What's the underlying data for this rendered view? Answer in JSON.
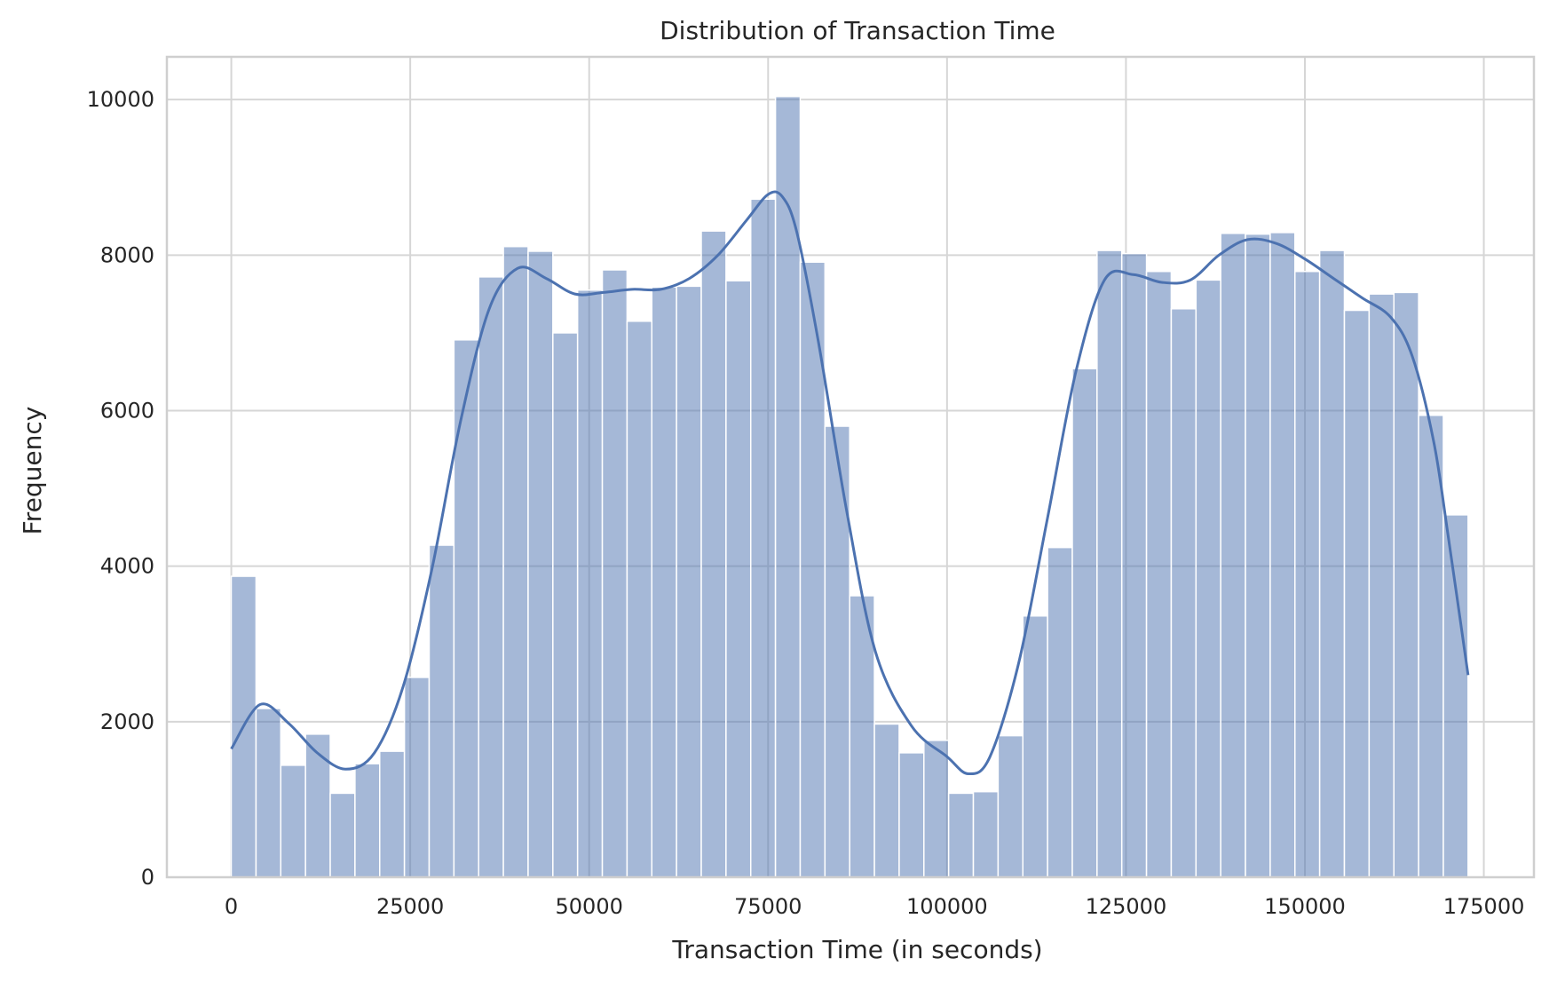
{
  "chart_data": {
    "type": "bar",
    "title": "Distribution of Transaction Time",
    "xlabel": "Transaction Time (in seconds)",
    "ylabel": "Frequency",
    "xlim": [
      -9000,
      182000
    ],
    "ylim": [
      0,
      10550
    ],
    "xticks": [
      0,
      25000,
      50000,
      75000,
      100000,
      125000,
      150000,
      175000
    ],
    "yticks": [
      0,
      2000,
      4000,
      6000,
      8000,
      10000
    ],
    "grid": true,
    "bin_start": 0,
    "bin_width": 3456,
    "values": [
      3870,
      2170,
      1440,
      1840,
      1080,
      1460,
      1620,
      2570,
      4270,
      6910,
      7720,
      8110,
      8050,
      7000,
      7550,
      7810,
      7150,
      7590,
      7600,
      8310,
      7670,
      8720,
      10040,
      7910,
      5800,
      3620,
      1970,
      1600,
      1760,
      1080,
      1100,
      1820,
      3360,
      4240,
      6540,
      8060,
      8020,
      7790,
      7310,
      7680,
      8280,
      8270,
      8290,
      7790,
      8060,
      7290,
      7500,
      7520,
      5940,
      4660
    ],
    "kde": {
      "x": [
        0,
        4000,
        8000,
        12000,
        16000,
        20000,
        24000,
        28000,
        32000,
        36000,
        40000,
        44000,
        48000,
        52000,
        56000,
        60000,
        64000,
        68000,
        72000,
        75000,
        77000,
        79000,
        82000,
        86000,
        90000,
        95000,
        100000,
        103000,
        106000,
        110000,
        114000,
        118000,
        122000,
        126000,
        130000,
        134000,
        138000,
        142000,
        146000,
        150000,
        154000,
        158000,
        162000,
        165000,
        168000,
        170000,
        172800
      ],
      "y": [
        1650,
        2220,
        1980,
        1600,
        1390,
        1600,
        2450,
        3950,
        5850,
        7300,
        7830,
        7700,
        7500,
        7520,
        7560,
        7560,
        7700,
        8000,
        8450,
        8780,
        8750,
        8300,
        6900,
        4700,
        2900,
        1950,
        1550,
        1330,
        1550,
        2750,
        4600,
        6500,
        7680,
        7750,
        7650,
        7680,
        8000,
        8200,
        8150,
        7950,
        7700,
        7450,
        7200,
        6700,
        5600,
        4400,
        2600
      ]
    }
  }
}
